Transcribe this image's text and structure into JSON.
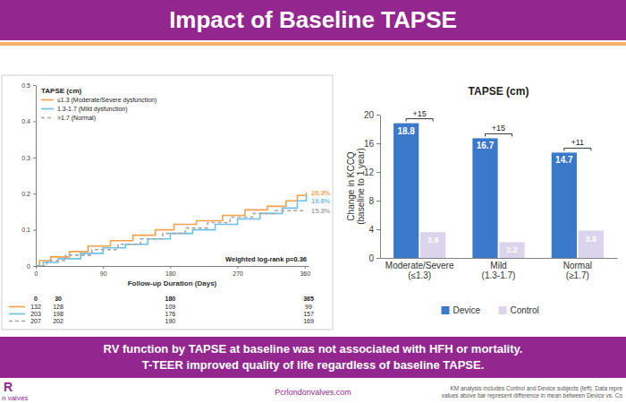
{
  "slide": {
    "title": "Impact of Baseline TAPSE",
    "banner": [
      "RV function by TAPSE at baseline was not associated with HFH or mortality.",
      "T-TEER improved quality of life regardless of baseline TAPSE."
    ],
    "logo": [
      "R",
      "n valves"
    ],
    "website": "Pcrlondonvalves.com",
    "footnotes": [
      "KM analysis includes Control and Device subjects (left). Data repre",
      "values above bar represent difference in mean between Device vs. Co"
    ]
  },
  "chart_data": [
    {
      "type": "line",
      "legend_title": "TAPSE (cm)",
      "legend": "top-left",
      "x_label": "Follow-up Duration (Days)",
      "annotation": "Weighted log-rank p=0.36",
      "xlim": [
        0,
        365
      ],
      "xticks": [
        0,
        90,
        180,
        270,
        360
      ],
      "ylim": [
        0,
        0.5
      ],
      "yticks": [
        0,
        0.1,
        0.2,
        0.3,
        0.4,
        0.5
      ],
      "series": [
        {
          "name": "≤1.3 (Moderate/Severe dysfunction)",
          "color": "#f4a24c",
          "line_style": "solid",
          "x": [
            0,
            5,
            20,
            45,
            70,
            100,
            130,
            160,
            185,
            215,
            250,
            280,
            310,
            335,
            350,
            362
          ],
          "values": [
            0,
            0.015,
            0.025,
            0.04,
            0.055,
            0.07,
            0.085,
            0.1,
            0.115,
            0.125,
            0.14,
            0.155,
            0.165,
            0.18,
            0.195,
            0.203
          ],
          "end_label": {
            "value": 0.203,
            "label": "20.3%"
          }
        },
        {
          "name": "1.3-1.7 (Mild dysfunction)",
          "color": "#6fc0e8",
          "line_style": "solid",
          "x": [
            0,
            10,
            30,
            60,
            90,
            120,
            150,
            180,
            210,
            240,
            270,
            300,
            330,
            350,
            362
          ],
          "values": [
            0,
            0.01,
            0.02,
            0.035,
            0.05,
            0.06,
            0.075,
            0.09,
            0.1,
            0.115,
            0.13,
            0.145,
            0.16,
            0.18,
            0.196
          ],
          "end_label": {
            "value": 0.196,
            "label": "19.6%"
          }
        },
        {
          "name": ">1.7 (Normal)",
          "color": "#a6a6a6",
          "line_style": "dashed",
          "x": [
            0,
            15,
            40,
            75,
            110,
            140,
            170,
            200,
            230,
            260,
            290,
            320,
            362
          ],
          "values": [
            0,
            0.015,
            0.03,
            0.045,
            0.06,
            0.075,
            0.09,
            0.105,
            0.12,
            0.135,
            0.145,
            0.153,
            0.153
          ],
          "end_label": {
            "value": 0.153,
            "label": "15.3%"
          }
        }
      ],
      "risk_table": {
        "times": [
          0,
          30,
          180,
          365
        ],
        "rows": [
          [
            132,
            128,
            109,
            99
          ],
          [
            203,
            198,
            176,
            157
          ],
          [
            207,
            202,
            190,
            169
          ]
        ]
      }
    },
    {
      "type": "bar",
      "title": "TAPSE (cm)",
      "y_label": "Change in KCCQ\n(baseline to 1 year)",
      "categories": [
        "Moderate/Severe\n(≤1.3)",
        "Mild\n(1.3-1.7)",
        "Normal\n(≥1.7)"
      ],
      "ylim": [
        0,
        20
      ],
      "yticks": [
        0,
        4,
        8,
        12,
        16,
        20
      ],
      "data_labels": true,
      "legend": "bottom",
      "series": [
        {
          "name": "Device",
          "color": "#3a78c9",
          "values": [
            18.8,
            16.7,
            14.7
          ]
        },
        {
          "name": "Control",
          "color": "#dcd3ec",
          "values": [
            3.6,
            2.2,
            3.8
          ]
        }
      ],
      "differences": {
        "values": [
          15,
          15,
          11
        ],
        "value_labels": [
          "+15",
          "+15",
          "+11"
        ]
      }
    }
  ]
}
